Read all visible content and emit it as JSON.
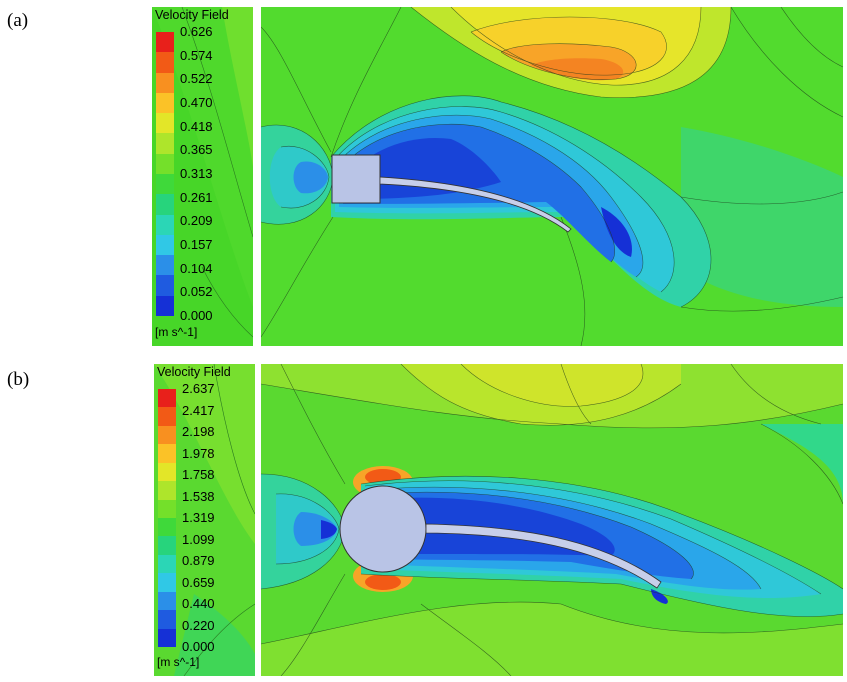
{
  "panels": [
    {
      "label": "(a)",
      "legend_title": "Velocity Field",
      "ticks": [
        "0.626",
        "0.574",
        "0.522",
        "0.470",
        "0.418",
        "0.365",
        "0.313",
        "0.261",
        "0.209",
        "0.157",
        "0.104",
        "0.052",
        "0.000"
      ],
      "unit": "[m s^-1]",
      "bluff_body": "square"
    },
    {
      "label": "(b)",
      "legend_title": "Velocity Field",
      "ticks": [
        "2.637",
        "2.417",
        "2.198",
        "1.978",
        "1.758",
        "1.538",
        "1.319",
        "1.099",
        "0.879",
        "0.659",
        "0.440",
        "0.220",
        "0.000"
      ],
      "unit": "[m s^-1]",
      "bluff_body": "circle"
    }
  ],
  "colormap": [
    "#e8201b",
    "#f25a16",
    "#f89020",
    "#fbc227",
    "#e3e628",
    "#aee52b",
    "#74e02a",
    "#3fd93a",
    "#27d47c",
    "#2bd6b6",
    "#30c8e6",
    "#2b8fe8",
    "#1f5be0",
    "#1530d6"
  ],
  "background_color": "#52db2e"
}
